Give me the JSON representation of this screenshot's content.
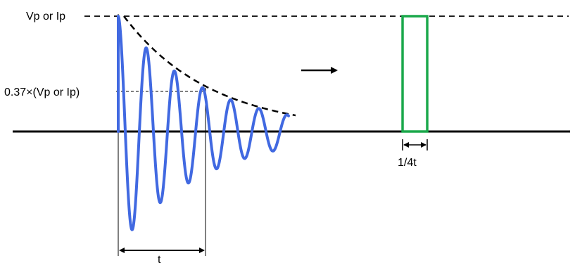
{
  "labels": {
    "peak": "Vp or Ip",
    "decay": "0.37×(Vp or Ip)",
    "period": "t",
    "pulse_width": "1/4t"
  },
  "colors": {
    "wave": "#4169e1",
    "pulse": "#1aa84b",
    "ink": "#000000"
  },
  "icons": {
    "conversion_arrow": "right-arrow-icon"
  }
}
